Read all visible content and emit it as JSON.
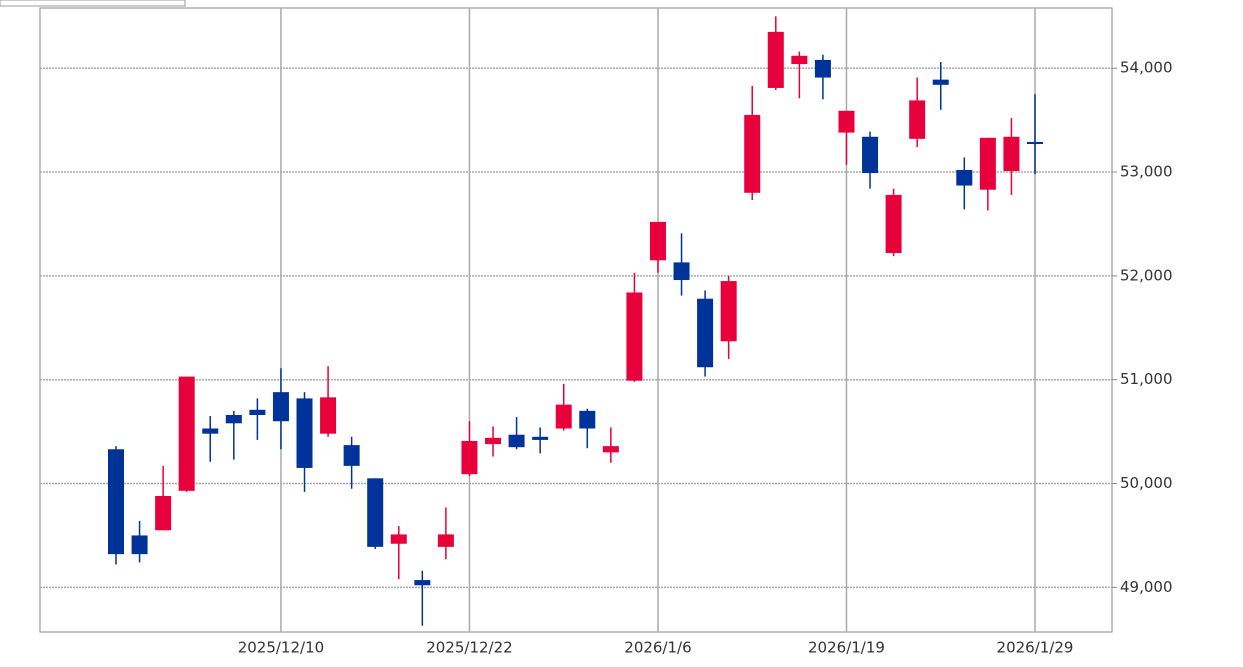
{
  "chart_data": {
    "type": "candlestick",
    "categories": [
      null,
      null,
      null,
      null,
      null,
      null,
      null,
      "2025/12/10",
      null,
      null,
      null,
      null,
      null,
      null,
      null,
      "2025/12/22",
      null,
      null,
      null,
      null,
      null,
      null,
      null,
      "2026/1/6",
      null,
      null,
      null,
      null,
      null,
      null,
      null,
      "2026/1/19",
      null,
      null,
      null,
      null,
      null,
      null,
      null,
      "2026/1/29"
    ],
    "open": [
      50330,
      49500,
      49550,
      49930,
      50530,
      50660,
      50710,
      50880,
      50820,
      50480,
      50370,
      50050,
      49420,
      49070,
      49390,
      50090,
      50380,
      50470,
      50450,
      50530,
      50700,
      50300,
      50990,
      52150,
      52130,
      51780,
      51370,
      52800,
      53810,
      54040,
      54080,
      53380,
      53340,
      52220,
      53320,
      53890,
      53020,
      52830,
      53010,
      53290
    ],
    "high": [
      50360,
      49640,
      50170,
      51030,
      50650,
      50700,
      50820,
      51110,
      50880,
      51130,
      50450,
      50050,
      49590,
      49160,
      49770,
      50600,
      50550,
      50640,
      50540,
      50960,
      50720,
      50540,
      52030,
      52520,
      52410,
      51860,
      52000,
      53830,
      54500,
      54160,
      54130,
      53590,
      53390,
      52840,
      53910,
      54060,
      53140,
      53330,
      53520,
      53750
    ],
    "low": [
      49220,
      49240,
      49550,
      49920,
      50210,
      50230,
      50420,
      50330,
      49920,
      50450,
      49950,
      49370,
      49080,
      48630,
      49270,
      50070,
      50260,
      50330,
      50290,
      50510,
      50340,
      50200,
      50980,
      52030,
      51810,
      51030,
      51200,
      52730,
      53790,
      53710,
      53700,
      53070,
      52840,
      52190,
      53240,
      53600,
      52640,
      52630,
      52780,
      52980
    ],
    "close": [
      49320,
      49320,
      49880,
      51030,
      50480,
      50580,
      50660,
      50600,
      50150,
      50830,
      50170,
      49390,
      49510,
      49020,
      49510,
      50410,
      50440,
      50350,
      50420,
      50760,
      50530,
      50360,
      51840,
      52520,
      51960,
      51120,
      51950,
      53550,
      54350,
      54120,
      53910,
      53590,
      52990,
      52780,
      53690,
      53840,
      52870,
      53330,
      53340,
      53270
    ],
    "up_color": "#e8003c",
    "down_color": "#003399",
    "ylim": [
      48570,
      54580
    ],
    "yticks": [
      {
        "value": 49000,
        "label": "49,000"
      },
      {
        "value": 50000,
        "label": "50,000"
      },
      {
        "value": 51000,
        "label": "51,000"
      },
      {
        "value": 52000,
        "label": "52,000"
      },
      {
        "value": 53000,
        "label": "53,000"
      },
      {
        "value": 54000,
        "label": "54,000"
      }
    ],
    "grid": true
  }
}
